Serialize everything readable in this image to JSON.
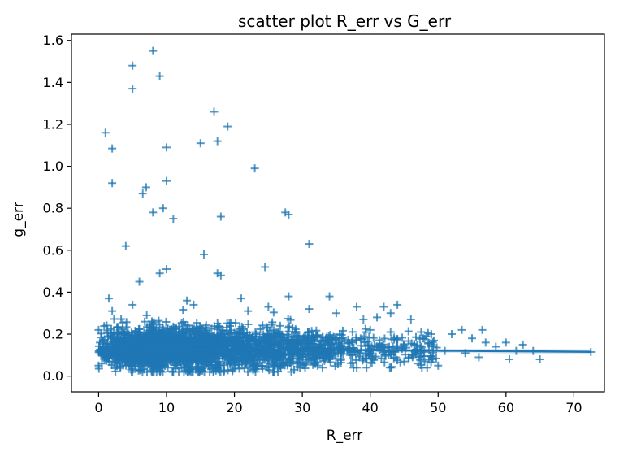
{
  "chart_data": {
    "type": "scatter",
    "title": "scatter plot R_err vs G_err",
    "xlabel": "R_err",
    "ylabel": "g_err",
    "xlim": [
      -4,
      74.5
    ],
    "ylim": [
      -0.075,
      1.63
    ],
    "xticks": [
      0,
      10,
      20,
      30,
      40,
      50,
      60,
      70
    ],
    "xtick_labels": [
      "0",
      "10",
      "20",
      "30",
      "40",
      "50",
      "60",
      "70"
    ],
    "yticks": [
      0.0,
      0.2,
      0.4,
      0.6,
      0.8,
      1.0,
      1.2,
      1.4,
      1.6
    ],
    "ytick_labels": [
      "0.0",
      "0.2",
      "0.4",
      "0.6",
      "0.8",
      "1.0",
      "1.2",
      "1.4",
      "1.6"
    ],
    "marker": "+",
    "color": "#1f77b4",
    "grid": false,
    "regression_line": {
      "x": [
        0,
        72.5
      ],
      "y": [
        0.133,
        0.116
      ]
    },
    "series": [
      {
        "points": [
          [
            8,
            1.55
          ],
          [
            5,
            1.48
          ],
          [
            9,
            1.43
          ],
          [
            5,
            1.37
          ],
          [
            17,
            1.26
          ],
          [
            19,
            1.19
          ],
          [
            1,
            1.16
          ],
          [
            17.5,
            1.12
          ],
          [
            15,
            1.11
          ],
          [
            10,
            1.09
          ],
          [
            2,
            1.085
          ],
          [
            23,
            0.99
          ],
          [
            10,
            0.93
          ],
          [
            2,
            0.92
          ],
          [
            7,
            0.9
          ],
          [
            6.5,
            0.87
          ],
          [
            8,
            0.78
          ],
          [
            9.5,
            0.8
          ],
          [
            11,
            0.75
          ],
          [
            27.5,
            0.78
          ],
          [
            28,
            0.77
          ],
          [
            18,
            0.76
          ],
          [
            4,
            0.62
          ],
          [
            31,
            0.63
          ],
          [
            15.5,
            0.58
          ],
          [
            24.5,
            0.52
          ],
          [
            10,
            0.51
          ],
          [
            9,
            0.49
          ],
          [
            17.5,
            0.49
          ],
          [
            18,
            0.48
          ],
          [
            6,
            0.45
          ],
          [
            1.5,
            0.37
          ],
          [
            2,
            0.31
          ],
          [
            5,
            0.34
          ],
          [
            13,
            0.36
          ],
          [
            21,
            0.37
          ],
          [
            28,
            0.38
          ],
          [
            34,
            0.38
          ],
          [
            38,
            0.33
          ],
          [
            42,
            0.33
          ],
          [
            44,
            0.34
          ],
          [
            43,
            0.3
          ],
          [
            41,
            0.28
          ],
          [
            39,
            0.27
          ],
          [
            35,
            0.3
          ],
          [
            31,
            0.32
          ],
          [
            25,
            0.33
          ],
          [
            22,
            0.31
          ],
          [
            14,
            0.34
          ],
          [
            46,
            0.27
          ],
          [
            47.5,
            0.21
          ],
          [
            52,
            0.2
          ],
          [
            53.5,
            0.22
          ],
          [
            56.5,
            0.22
          ],
          [
            55,
            0.18
          ],
          [
            49,
            0.2
          ],
          [
            57,
            0.16
          ],
          [
            58.5,
            0.14
          ],
          [
            60,
            0.16
          ],
          [
            61.5,
            0.12
          ],
          [
            62.5,
            0.15
          ],
          [
            64,
            0.12
          ],
          [
            65,
            0.08
          ],
          [
            60.5,
            0.08
          ],
          [
            56,
            0.09
          ],
          [
            54,
            0.11
          ],
          [
            50,
            0.05
          ],
          [
            48,
            0.07
          ],
          [
            46.5,
            0.15
          ],
          [
            45,
            0.07
          ],
          [
            51,
            0.12
          ],
          [
            72.5,
            0.115
          ],
          [
            40,
            0.22
          ],
          [
            43,
            0.21
          ],
          [
            0,
            0.22
          ],
          [
            0,
            0.05
          ],
          [
            0.5,
            0.12
          ],
          [
            0.2,
            0.16
          ]
        ]
      }
    ]
  }
}
